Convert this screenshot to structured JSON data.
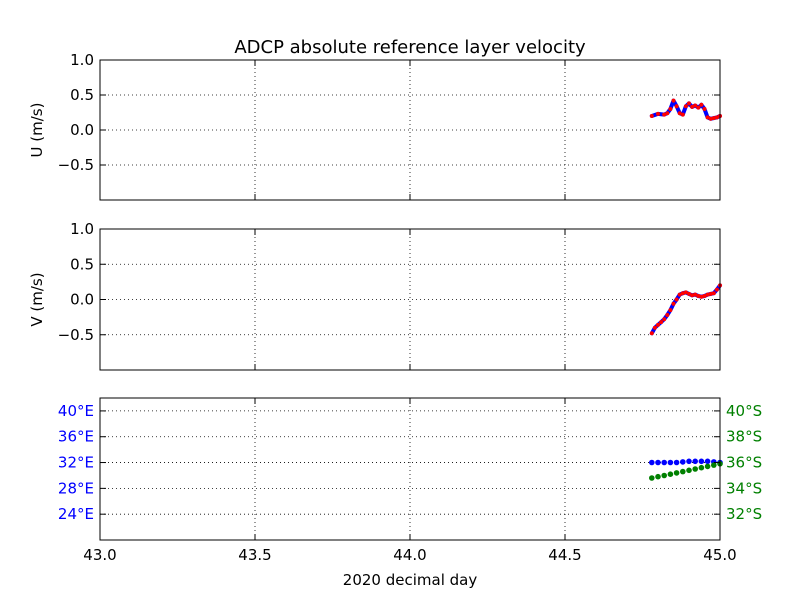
{
  "chart_data": {
    "title": "ADCP absolute reference layer velocity",
    "xlabel": "2020 decimal day",
    "xlim": [
      43.0,
      45.0
    ],
    "xticks": [
      "43.0",
      "43.5",
      "44.0",
      "44.5",
      "45.0"
    ],
    "xtick_values": [
      43.0,
      43.5,
      44.0,
      44.5,
      45.0
    ],
    "grid": true,
    "panels": [
      {
        "id": "u",
        "type": "line",
        "ylabel": "U (m/s)",
        "ylim": [
          -1.0,
          1.0
        ],
        "yticks": [
          "1.0",
          "0.5",
          "0.0",
          "−0.5"
        ],
        "ytick_values": [
          1.0,
          0.5,
          0.0,
          -0.5
        ],
        "series": [
          {
            "color": "#0000ff",
            "marker_color": "#ff0000",
            "x": [
              44.78,
              44.8,
              44.82,
              44.83,
              44.84,
              44.85,
              44.86,
              44.87,
              44.88,
              44.89,
              44.9,
              44.91,
              44.92,
              44.93,
              44.94,
              44.95,
              44.96,
              44.97,
              44.98,
              44.99,
              45.0
            ],
            "y": [
              0.2,
              0.23,
              0.22,
              0.24,
              0.3,
              0.42,
              0.34,
              0.24,
              0.22,
              0.34,
              0.38,
              0.33,
              0.35,
              0.32,
              0.36,
              0.3,
              0.18,
              0.16,
              0.17,
              0.18,
              0.2
            ]
          }
        ]
      },
      {
        "id": "v",
        "type": "line",
        "ylabel": "V (m/s)",
        "ylim": [
          -1.0,
          1.0
        ],
        "yticks": [
          "1.0",
          "0.5",
          "0.0",
          "−0.5"
        ],
        "ytick_values": [
          1.0,
          0.5,
          0.0,
          -0.5
        ],
        "series": [
          {
            "color": "#0000ff",
            "marker_color": "#ff0000",
            "x": [
              44.78,
              44.79,
              44.8,
              44.81,
              44.82,
              44.83,
              44.84,
              44.85,
              44.86,
              44.87,
              44.88,
              44.89,
              44.9,
              44.91,
              44.92,
              44.93,
              44.94,
              44.95,
              44.96,
              44.97,
              44.98,
              44.99,
              45.0
            ],
            "y": [
              -0.48,
              -0.4,
              -0.36,
              -0.32,
              -0.28,
              -0.22,
              -0.15,
              -0.06,
              0.0,
              0.07,
              0.09,
              0.1,
              0.08,
              0.06,
              0.07,
              0.05,
              0.04,
              0.05,
              0.07,
              0.08,
              0.09,
              0.14,
              0.2
            ]
          }
        ]
      },
      {
        "id": "position",
        "type": "scatter",
        "ylim_left": [
          20,
          42
        ],
        "yticks_left": [
          "40°E",
          "36°E",
          "32°E",
          "28°E",
          "24°E"
        ],
        "ytick_values_left": [
          40,
          36,
          32,
          28,
          24
        ],
        "left_tick_color": "#0000ff",
        "ylim_right": [
          -30,
          -41
        ],
        "yticks_right": [
          "32°S",
          "34°S",
          "36°S",
          "38°S",
          "40°S"
        ],
        "ytick_values_right": [
          -32,
          -34,
          -36,
          -38,
          -40
        ],
        "right_tick_color": "#008000",
        "series": [
          {
            "axis": "left",
            "color": "#0000ff",
            "x": [
              44.78,
              44.8,
              44.82,
              44.84,
              44.86,
              44.88,
              44.9,
              44.92,
              44.94,
              44.96,
              44.98,
              45.0
            ],
            "y": [
              32.0,
              32.0,
              32.0,
              32.0,
              32.0,
              32.1,
              32.2,
              32.2,
              32.2,
              32.2,
              32.1,
              32.0
            ]
          },
          {
            "axis": "right",
            "color": "#008000",
            "x": [
              44.78,
              44.8,
              44.82,
              44.84,
              44.86,
              44.88,
              44.9,
              44.92,
              44.94,
              44.96,
              44.98,
              45.0
            ],
            "y": [
              -34.8,
              -34.9,
              -35.0,
              -35.1,
              -35.2,
              -35.3,
              -35.4,
              -35.5,
              -35.6,
              -35.7,
              -35.8,
              -35.9
            ]
          }
        ]
      }
    ]
  }
}
